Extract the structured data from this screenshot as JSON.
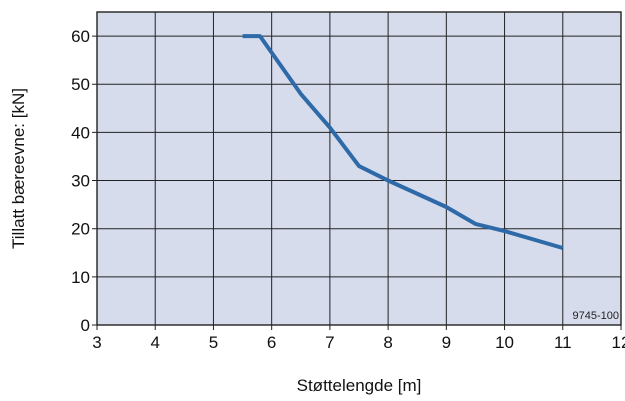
{
  "chart_data": {
    "type": "line",
    "title": "",
    "xlabel": "Støttelengde [m]",
    "ylabel": "Tillatt bæreevne: [kN]",
    "xlim": [
      3,
      12
    ],
    "ylim": [
      0,
      65
    ],
    "x_ticks": [
      3,
      4,
      5,
      6,
      7,
      8,
      9,
      10,
      11,
      12
    ],
    "y_ticks": [
      0,
      10,
      20,
      30,
      40,
      50,
      60
    ],
    "grid": true,
    "background_color": "#d6dcec",
    "grid_color": "#222222",
    "series": [
      {
        "color": "#2e6aa8",
        "x": [
          5.5,
          5.8,
          6.5,
          7.0,
          7.5,
          8.0,
          9.0,
          9.5,
          10.0,
          11.0
        ],
        "y": [
          60,
          60,
          48,
          41,
          33,
          30,
          24.5,
          21,
          19.5,
          16
        ]
      }
    ],
    "annotation": "9745-100"
  }
}
